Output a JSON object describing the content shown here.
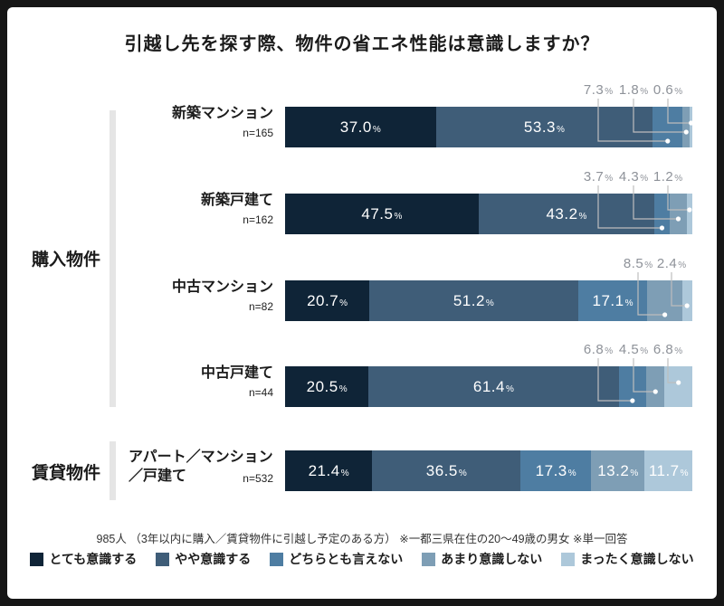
{
  "title": "引越し先を探す際、物件の省エネ性能は意識しますか？",
  "footnote": "985人 （3年以内に購入／賃貸物件に引越し予定のある方） ※一都三県在住の20～49歳の男女 ※単一回答",
  "chart_data": {
    "type": "bar",
    "orientation": "horizontal",
    "stacked": true,
    "unit": "%",
    "xlim": [
      0,
      100
    ],
    "grid": false,
    "legend_position": "bottom",
    "series": [
      {
        "name": "とても意識する",
        "color": "#0f2437"
      },
      {
        "name": "やや意識する",
        "color": "#3f5d78"
      },
      {
        "name": "どちらとも言えない",
        "color": "#4e7da2"
      },
      {
        "name": "あまり意識しない",
        "color": "#7e9eb5"
      },
      {
        "name": "まったく意識しない",
        "color": "#adc8da"
      }
    ],
    "groups": [
      {
        "label": "購入物件",
        "row_indexes": [
          0,
          1,
          2,
          3
        ]
      },
      {
        "label": "賃貸物件",
        "row_indexes": [
          4
        ]
      }
    ],
    "rows": [
      {
        "name_lines": [
          "新築マンション"
        ],
        "n": "n=165",
        "values": [
          37.0,
          53.3,
          7.3,
          1.8,
          0.6
        ],
        "callout_from": 2
      },
      {
        "name_lines": [
          "新築戸建て"
        ],
        "n": "n=162",
        "values": [
          47.5,
          43.2,
          3.7,
          4.3,
          1.2
        ],
        "callout_from": 2
      },
      {
        "name_lines": [
          "中古マンション"
        ],
        "n": "n=82",
        "values": [
          20.7,
          51.2,
          17.1,
          8.5,
          2.4
        ],
        "callout_from": 3
      },
      {
        "name_lines": [
          "中古戸建て"
        ],
        "n": "n=44",
        "values": [
          20.5,
          61.4,
          6.8,
          4.5,
          6.8
        ],
        "callout_from": 2
      },
      {
        "name_lines": [
          "アパート／マンション",
          "／戸建て"
        ],
        "n": "n=532",
        "values": [
          21.4,
          36.5,
          17.3,
          13.2,
          11.7
        ],
        "callout_from": 5
      }
    ]
  }
}
